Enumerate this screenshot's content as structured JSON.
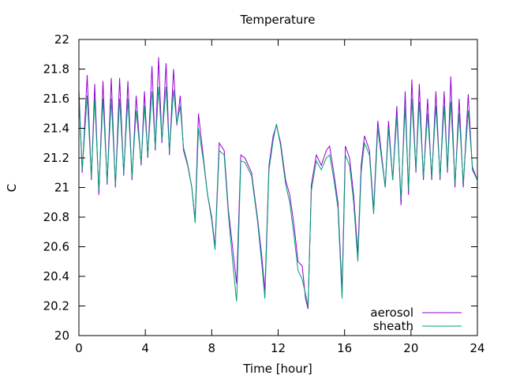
{
  "chart_data": {
    "type": "line",
    "title": "Temperature",
    "xlabel": "Time [hour]",
    "ylabel": "C",
    "xlim": [
      0,
      24
    ],
    "ylim": [
      20,
      22
    ],
    "xticks": [
      0,
      4,
      8,
      12,
      16,
      20,
      24
    ],
    "yticks": [
      20,
      20.2,
      20.4,
      20.6,
      20.8,
      21,
      21.2,
      21.4,
      21.6,
      21.8,
      22
    ],
    "grid": false,
    "legend_position": "bottom-right",
    "series": [
      {
        "name": "aerosol",
        "color": "#9400d3",
        "points": [
          [
            0.0,
            21.66
          ],
          [
            0.2,
            21.1
          ],
          [
            0.5,
            21.76
          ],
          [
            0.75,
            21.05
          ],
          [
            0.95,
            21.7
          ],
          [
            1.2,
            20.95
          ],
          [
            1.45,
            21.72
          ],
          [
            1.7,
            21.02
          ],
          [
            1.95,
            21.74
          ],
          [
            2.2,
            21.0
          ],
          [
            2.45,
            21.74
          ],
          [
            2.7,
            21.08
          ],
          [
            2.95,
            21.72
          ],
          [
            3.2,
            21.05
          ],
          [
            3.45,
            21.62
          ],
          [
            3.75,
            21.15
          ],
          [
            3.95,
            21.65
          ],
          [
            4.15,
            21.2
          ],
          [
            4.4,
            21.82
          ],
          [
            4.6,
            21.25
          ],
          [
            4.8,
            21.88
          ],
          [
            5.0,
            21.3
          ],
          [
            5.25,
            21.84
          ],
          [
            5.45,
            21.22
          ],
          [
            5.7,
            21.8
          ],
          [
            5.9,
            21.42
          ],
          [
            6.1,
            21.62
          ],
          [
            6.3,
            21.25
          ],
          [
            6.55,
            21.15
          ],
          [
            6.8,
            21.0
          ],
          [
            7.0,
            20.78
          ],
          [
            7.2,
            21.5
          ],
          [
            7.5,
            21.2
          ],
          [
            7.75,
            20.95
          ],
          [
            8.0,
            20.8
          ],
          [
            8.2,
            20.6
          ],
          [
            8.45,
            21.3
          ],
          [
            8.75,
            21.25
          ],
          [
            9.0,
            20.85
          ],
          [
            9.3,
            20.55
          ],
          [
            9.5,
            20.35
          ],
          [
            9.75,
            21.22
          ],
          [
            10.0,
            21.2
          ],
          [
            10.4,
            21.1
          ],
          [
            10.75,
            20.8
          ],
          [
            11.0,
            20.55
          ],
          [
            11.2,
            20.3
          ],
          [
            11.45,
            21.15
          ],
          [
            11.7,
            21.35
          ],
          [
            11.9,
            21.42
          ],
          [
            12.15,
            21.3
          ],
          [
            12.45,
            21.05
          ],
          [
            12.7,
            20.95
          ],
          [
            12.95,
            20.75
          ],
          [
            13.2,
            20.5
          ],
          [
            13.45,
            20.47
          ],
          [
            13.65,
            20.25
          ],
          [
            13.8,
            20.18
          ],
          [
            14.0,
            21.02
          ],
          [
            14.3,
            21.22
          ],
          [
            14.6,
            21.15
          ],
          [
            14.9,
            21.25
          ],
          [
            15.1,
            21.28
          ],
          [
            15.35,
            21.1
          ],
          [
            15.6,
            20.9
          ],
          [
            15.85,
            20.3
          ],
          [
            16.05,
            21.28
          ],
          [
            16.3,
            21.2
          ],
          [
            16.55,
            20.95
          ],
          [
            16.8,
            20.55
          ],
          [
            17.0,
            21.15
          ],
          [
            17.2,
            21.35
          ],
          [
            17.5,
            21.25
          ],
          [
            17.75,
            20.85
          ],
          [
            18.0,
            21.45
          ],
          [
            18.2,
            21.25
          ],
          [
            18.45,
            21.0
          ],
          [
            18.65,
            21.45
          ],
          [
            18.9,
            21.05
          ],
          [
            19.15,
            21.55
          ],
          [
            19.4,
            20.88
          ],
          [
            19.65,
            21.65
          ],
          [
            19.85,
            20.95
          ],
          [
            20.05,
            21.73
          ],
          [
            20.3,
            21.1
          ],
          [
            20.5,
            21.7
          ],
          [
            20.75,
            21.05
          ],
          [
            21.0,
            21.6
          ],
          [
            21.25,
            21.05
          ],
          [
            21.5,
            21.65
          ],
          [
            21.75,
            21.05
          ],
          [
            22.0,
            21.65
          ],
          [
            22.2,
            21.1
          ],
          [
            22.4,
            21.75
          ],
          [
            22.65,
            21.0
          ],
          [
            22.9,
            21.6
          ],
          [
            23.15,
            21.0
          ],
          [
            23.45,
            21.63
          ],
          [
            23.7,
            21.12
          ],
          [
            24.0,
            21.05
          ]
        ]
      },
      {
        "name": "sheath",
        "color": "#009e73",
        "points": [
          [
            0.0,
            21.63
          ],
          [
            0.2,
            21.12
          ],
          [
            0.5,
            21.62
          ],
          [
            0.75,
            21.07
          ],
          [
            0.95,
            21.6
          ],
          [
            1.2,
            20.98
          ],
          [
            1.45,
            21.6
          ],
          [
            1.7,
            21.04
          ],
          [
            1.95,
            21.6
          ],
          [
            2.2,
            21.02
          ],
          [
            2.45,
            21.6
          ],
          [
            2.7,
            21.1
          ],
          [
            2.95,
            21.6
          ],
          [
            3.2,
            21.07
          ],
          [
            3.45,
            21.52
          ],
          [
            3.75,
            21.17
          ],
          [
            3.95,
            21.55
          ],
          [
            4.15,
            21.22
          ],
          [
            4.4,
            21.65
          ],
          [
            4.6,
            21.27
          ],
          [
            4.8,
            21.68
          ],
          [
            5.0,
            21.32
          ],
          [
            5.25,
            21.68
          ],
          [
            5.45,
            21.24
          ],
          [
            5.7,
            21.66
          ],
          [
            5.9,
            21.43
          ],
          [
            6.1,
            21.55
          ],
          [
            6.3,
            21.27
          ],
          [
            6.55,
            21.16
          ],
          [
            6.8,
            21.0
          ],
          [
            7.0,
            20.76
          ],
          [
            7.2,
            21.4
          ],
          [
            7.5,
            21.18
          ],
          [
            7.75,
            20.95
          ],
          [
            8.0,
            20.78
          ],
          [
            8.2,
            20.58
          ],
          [
            8.45,
            21.25
          ],
          [
            8.75,
            21.22
          ],
          [
            9.0,
            20.82
          ],
          [
            9.3,
            20.45
          ],
          [
            9.5,
            20.23
          ],
          [
            9.75,
            21.18
          ],
          [
            10.0,
            21.17
          ],
          [
            10.4,
            21.08
          ],
          [
            10.75,
            20.78
          ],
          [
            11.0,
            20.5
          ],
          [
            11.2,
            20.25
          ],
          [
            11.45,
            21.12
          ],
          [
            11.7,
            21.32
          ],
          [
            11.9,
            21.43
          ],
          [
            12.15,
            21.28
          ],
          [
            12.45,
            21.02
          ],
          [
            12.7,
            20.9
          ],
          [
            12.95,
            20.68
          ],
          [
            13.2,
            20.44
          ],
          [
            13.45,
            20.38
          ],
          [
            13.65,
            20.28
          ],
          [
            13.8,
            20.2
          ],
          [
            14.0,
            20.98
          ],
          [
            14.3,
            21.18
          ],
          [
            14.6,
            21.12
          ],
          [
            14.9,
            21.2
          ],
          [
            15.1,
            21.22
          ],
          [
            15.35,
            21.06
          ],
          [
            15.6,
            20.86
          ],
          [
            15.85,
            20.25
          ],
          [
            16.05,
            21.22
          ],
          [
            16.3,
            21.15
          ],
          [
            16.55,
            20.9
          ],
          [
            16.8,
            20.5
          ],
          [
            17.0,
            21.1
          ],
          [
            17.2,
            21.3
          ],
          [
            17.5,
            21.22
          ],
          [
            17.75,
            20.82
          ],
          [
            18.0,
            21.4
          ],
          [
            18.2,
            21.22
          ],
          [
            18.45,
            21.0
          ],
          [
            18.65,
            21.4
          ],
          [
            18.9,
            21.05
          ],
          [
            19.15,
            21.48
          ],
          [
            19.4,
            20.92
          ],
          [
            19.65,
            21.55
          ],
          [
            19.85,
            20.98
          ],
          [
            20.05,
            21.6
          ],
          [
            20.3,
            21.12
          ],
          [
            20.5,
            21.58
          ],
          [
            20.75,
            21.07
          ],
          [
            21.0,
            21.5
          ],
          [
            21.25,
            21.07
          ],
          [
            21.5,
            21.55
          ],
          [
            21.75,
            21.07
          ],
          [
            22.0,
            21.55
          ],
          [
            22.2,
            21.12
          ],
          [
            22.4,
            21.58
          ],
          [
            22.65,
            21.03
          ],
          [
            22.9,
            21.5
          ],
          [
            23.15,
            21.03
          ],
          [
            23.45,
            21.52
          ],
          [
            23.7,
            21.14
          ],
          [
            24.0,
            21.05
          ]
        ]
      }
    ]
  }
}
